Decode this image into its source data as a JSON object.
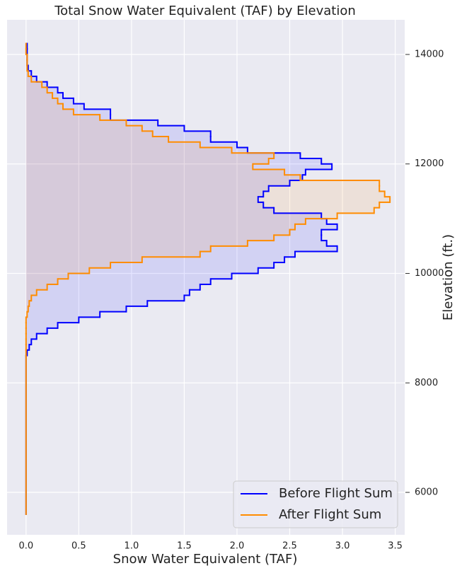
{
  "chart_data": {
    "type": "step-histogram",
    "orientation": "horizontal",
    "title": "Total Snow Water Equivalent (TAF) by Elevation",
    "xlabel": "Snow Water Equivalent (TAF)",
    "ylabel": "Elevation (ft.)",
    "bins": [
      5600,
      8500,
      8600,
      8700,
      8800,
      8900,
      9000,
      9100,
      9200,
      9300,
      9400,
      9500,
      9600,
      9700,
      9800,
      9900,
      10000,
      10100,
      10200,
      10300,
      10400,
      10500,
      10600,
      10700,
      10800,
      10900,
      11000,
      11100,
      11200,
      11300,
      11400,
      11500,
      11600,
      11700,
      11800,
      11900,
      12000,
      12100,
      12200,
      12300,
      12400,
      12500,
      12600,
      12700,
      12800,
      12900,
      13000,
      13100,
      13200,
      13300,
      13400,
      13500,
      13600,
      13700,
      13800,
      13900,
      14000,
      14100,
      14200
    ],
    "series": [
      {
        "name": "Before Flight Sum",
        "color": "#0000ff",
        "fill": "rgba(0,0,255,0.1)",
        "values": [
          0,
          0.01,
          0.03,
          0.05,
          0.1,
          0.2,
          0.3,
          0.5,
          0.7,
          0.95,
          1.15,
          1.5,
          1.55,
          1.65,
          1.75,
          1.95,
          2.2,
          2.35,
          2.45,
          2.55,
          2.95,
          2.85,
          2.8,
          2.8,
          2.95,
          2.85,
          2.8,
          2.35,
          2.25,
          2.2,
          2.25,
          2.3,
          2.5,
          2.62,
          2.65,
          2.9,
          2.8,
          2.6,
          2.1,
          2.0,
          1.75,
          1.75,
          1.5,
          1.25,
          0.8,
          0.8,
          0.55,
          0.45,
          0.35,
          0.3,
          0.2,
          0.1,
          0.05,
          0.02,
          0.01,
          0.01,
          0.01,
          0.01
        ]
      },
      {
        "name": "After Flight Sum",
        "color": "#ff8c00",
        "fill": "rgba(255,140,0,0.1)",
        "values": [
          0,
          0,
          0,
          0,
          0,
          0,
          0,
          0,
          0.01,
          0.02,
          0.03,
          0.05,
          0.1,
          0.2,
          0.3,
          0.4,
          0.6,
          0.8,
          1.1,
          1.65,
          1.75,
          2.1,
          2.35,
          2.5,
          2.55,
          2.65,
          2.95,
          3.3,
          3.35,
          3.45,
          3.4,
          3.35,
          3.35,
          2.6,
          2.45,
          2.15,
          2.3,
          2.35,
          1.95,
          1.65,
          1.35,
          1.2,
          1.1,
          0.95,
          0.7,
          0.45,
          0.35,
          0.3,
          0.25,
          0.2,
          0.15,
          0.05,
          0.02,
          0.01,
          0.01,
          0.01,
          0,
          0
        ]
      }
    ],
    "xlim": [
      -0.18,
      3.59
    ],
    "ylim": [
      5225,
      14633
    ],
    "xticks": [
      {
        "value": 0,
        "label": "0.0"
      },
      0.5,
      {
        "value": 1,
        "label": "1.0"
      },
      1.5,
      {
        "value": 2,
        "label": "2.0"
      },
      2.5,
      {
        "value": 3,
        "label": "3.0"
      },
      3.5
    ],
    "yticks": [
      6000,
      8000,
      10000,
      12000,
      14000
    ],
    "grid": true,
    "yaxis_side": "right",
    "legend": "lower right"
  }
}
